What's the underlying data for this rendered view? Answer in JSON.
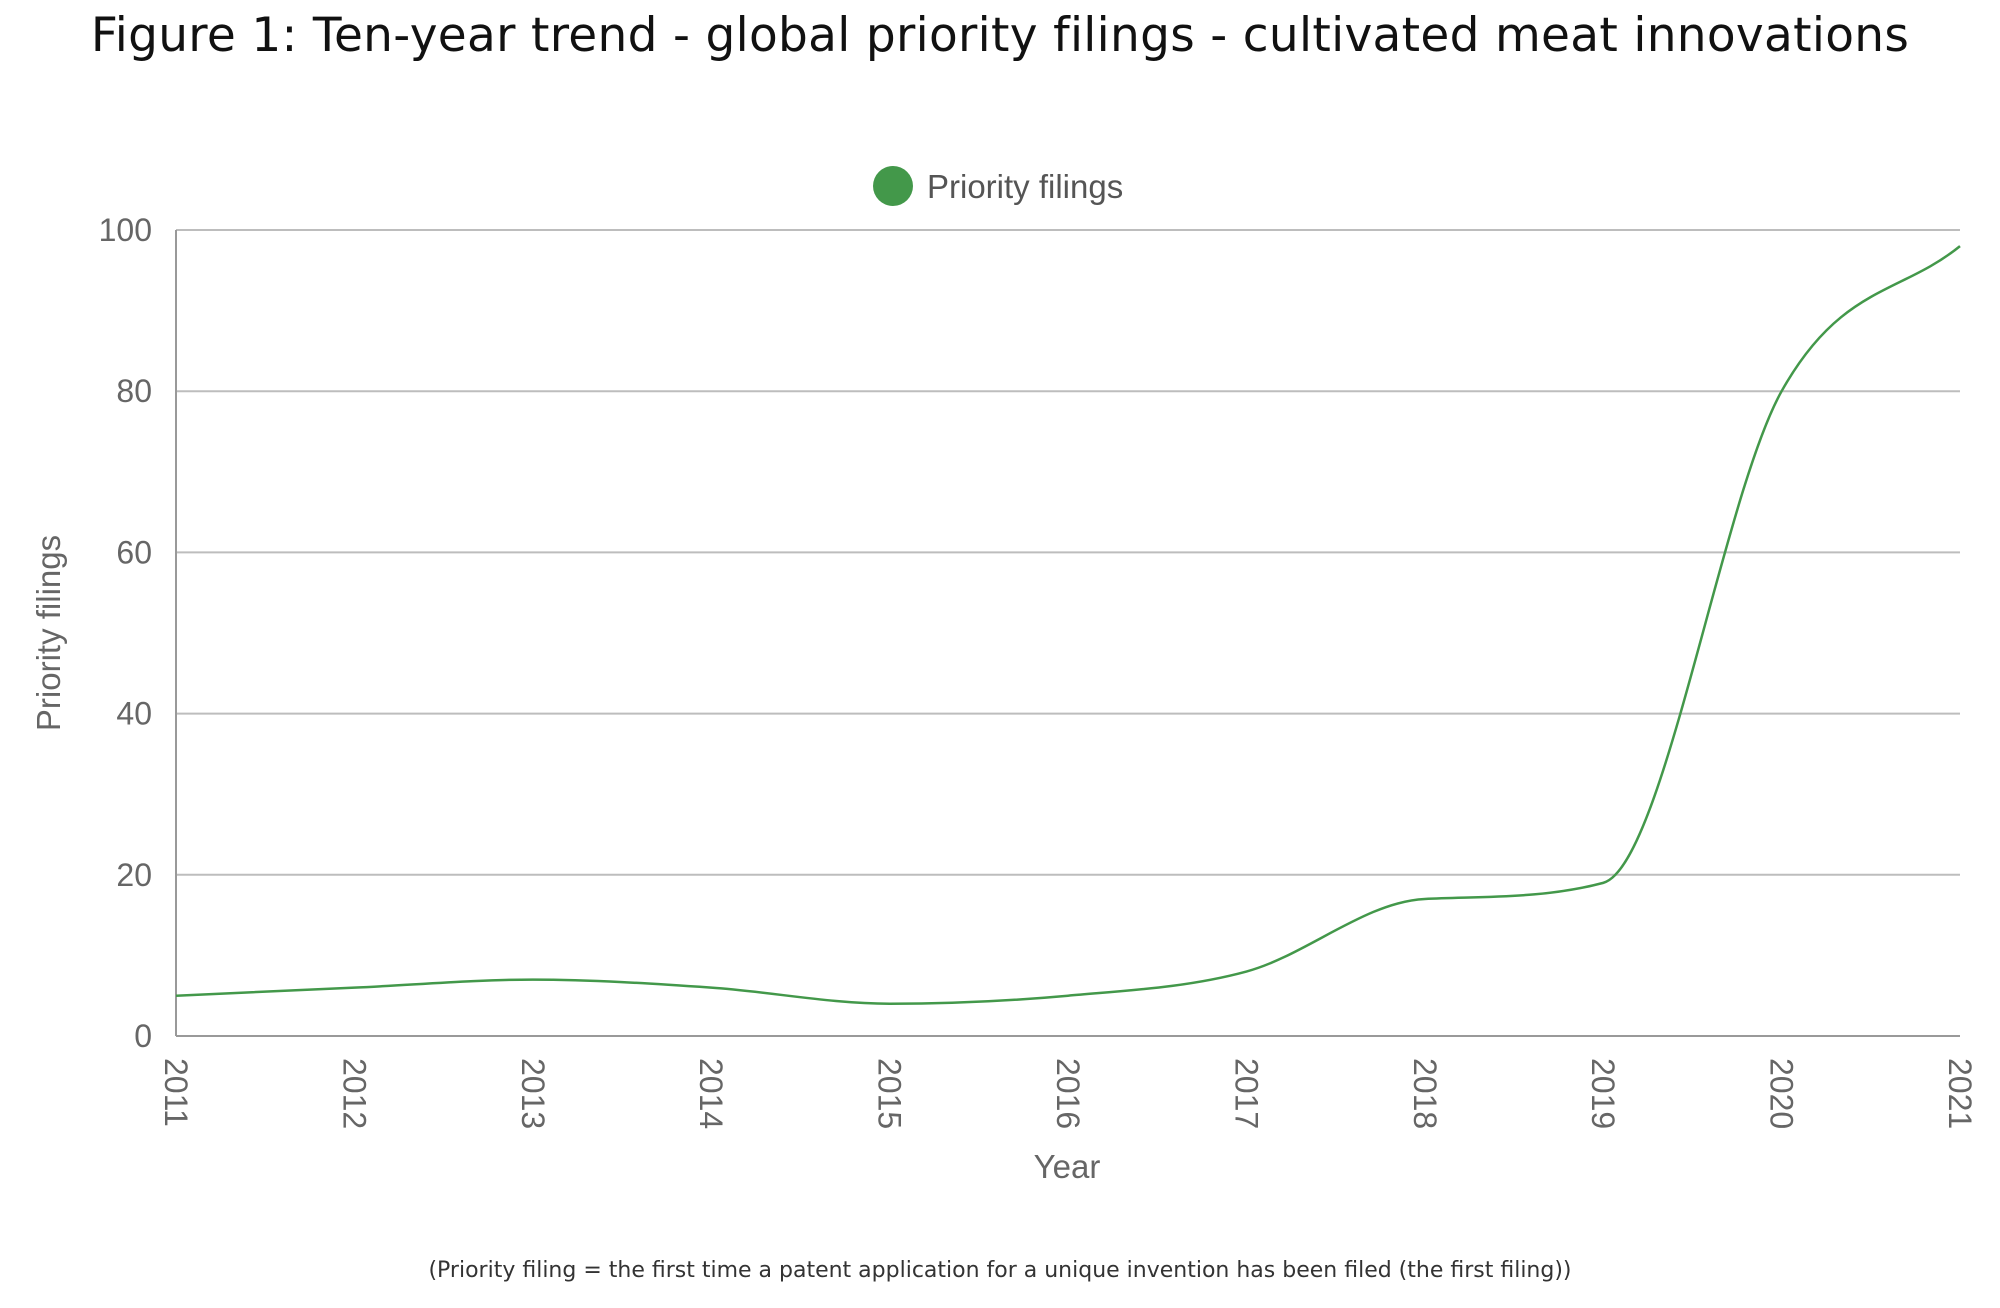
{
  "title": "Figure 1: Ten-year trend - global priority filings - cultivated meat innovations",
  "footnote": "(Priority filing = the first time a patent application for a unique invention has been filed (the first filing))",
  "colors": {
    "series": "#43984a",
    "grid": "#bdbdbd",
    "axis": "#999999",
    "text": "#666666"
  },
  "chart_data": {
    "type": "line",
    "title": "",
    "xlabel": "Year",
    "ylabel": "Priority filings",
    "x": [
      2011,
      2012,
      2013,
      2014,
      2015,
      2016,
      2017,
      2018,
      2019,
      2020,
      2021
    ],
    "series": [
      {
        "name": "Priority filings",
        "values": [
          5,
          6,
          7,
          6,
          4,
          5,
          8,
          17,
          19,
          80,
          98
        ]
      }
    ],
    "ylim": [
      0,
      100
    ],
    "yticks": [
      0,
      20,
      40,
      60,
      80,
      100
    ],
    "xticks": [
      "2011",
      "2012",
      "2013",
      "2014",
      "2015",
      "2016",
      "2017",
      "2018",
      "2019",
      "2020",
      "2021"
    ],
    "grid": true,
    "legend": "top-center",
    "smooth": true
  }
}
